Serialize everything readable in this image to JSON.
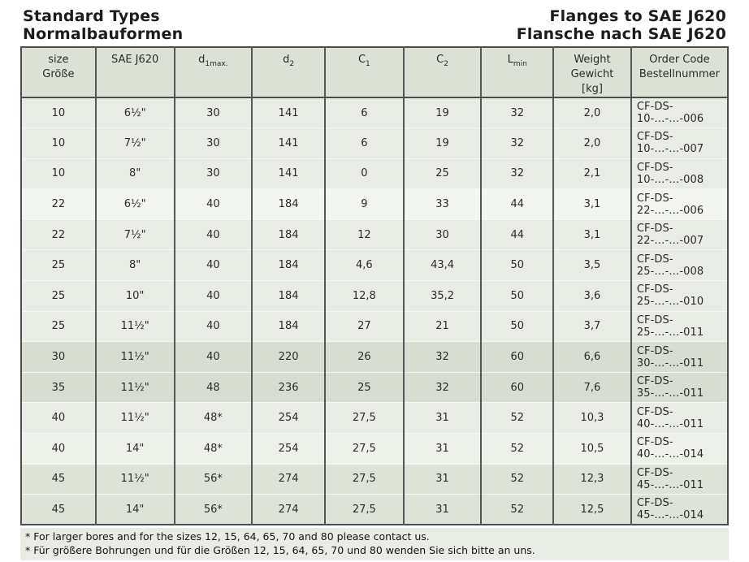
{
  "titles": {
    "left_line1": "Standard Types",
    "left_line2": "Normalbauformen",
    "right_line1": "Flanges to SAE J620",
    "right_line2": "Flansche nach SAE J620"
  },
  "table": {
    "columns": [
      {
        "id": "size",
        "label_lines": [
          "size",
          "Größe"
        ]
      },
      {
        "id": "sae",
        "label_lines": [
          "SAE J620"
        ]
      },
      {
        "id": "d1max",
        "base": "d",
        "sub": "1max."
      },
      {
        "id": "d2",
        "base": "d",
        "sub": "2"
      },
      {
        "id": "c1",
        "base": "C",
        "sub": "1"
      },
      {
        "id": "c2",
        "base": "C",
        "sub": "2"
      },
      {
        "id": "lmin",
        "base": "L",
        "sub": "min"
      },
      {
        "id": "weight",
        "label_lines": [
          "Weight",
          "Gewicht",
          "[kg]"
        ]
      },
      {
        "id": "order",
        "label_lines": [
          "Order Code",
          "Bestellnummer"
        ]
      }
    ],
    "col_widths_pct": [
      10.55,
      11.12,
      11.0,
      10.32,
      11.12,
      11.0,
      10.2,
      11.0,
      13.69
    ],
    "rows": [
      {
        "shade": "light",
        "cells": [
          "10",
          "6½\"",
          "30",
          "141",
          "6",
          "19",
          "32",
          "2,0",
          "CF-DS-10-…-…-006"
        ]
      },
      {
        "shade": "light",
        "cells": [
          "10",
          "7½\"",
          "30",
          "141",
          "6",
          "19",
          "32",
          "2,0",
          "CF-DS-10-…-…-007"
        ]
      },
      {
        "shade": "light",
        "cells": [
          "10",
          "8\"",
          "30",
          "141",
          "0",
          "25",
          "32",
          "2,1",
          "CF-DS-10-…-…-008"
        ]
      },
      {
        "shade": "white",
        "cells": [
          "22",
          "6½\"",
          "40",
          "184",
          "9",
          "33",
          "44",
          "3,1",
          "CF-DS-22-…-…-006"
        ]
      },
      {
        "shade": "light",
        "cells": [
          "22",
          "7½\"",
          "40",
          "184",
          "12",
          "30",
          "44",
          "3,1",
          "CF-DS-22-…-…-007"
        ]
      },
      {
        "shade": "light",
        "cells": [
          "25",
          "8\"",
          "40",
          "184",
          "4,6",
          "43,4",
          "50",
          "3,5",
          "CF-DS-25-…-…-008"
        ]
      },
      {
        "shade": "light",
        "cells": [
          "25",
          "10\"",
          "40",
          "184",
          "12,8",
          "35,2",
          "50",
          "3,6",
          "CF-DS-25-…-…-010"
        ]
      },
      {
        "shade": "light",
        "cells": [
          "25",
          "11½\"",
          "40",
          "184",
          "27",
          "21",
          "50",
          "3,7",
          "CF-DS-25-…-…-011"
        ]
      },
      {
        "shade": "dark",
        "cells": [
          "30",
          "11½\"",
          "40",
          "220",
          "26",
          "32",
          "60",
          "6,6",
          "CF-DS-30-…-…-011"
        ]
      },
      {
        "shade": "dark",
        "cells": [
          "35",
          "11½\"",
          "48",
          "236",
          "25",
          "32",
          "60",
          "7,6",
          "CF-DS-35-…-…-011"
        ]
      },
      {
        "shade": "light",
        "cells": [
          "40",
          "11½\"",
          "48*",
          "254",
          "27,5",
          "31",
          "52",
          "10,3",
          "CF-DS-40-…-…-011"
        ]
      },
      {
        "shade": "lighter",
        "cells": [
          "40",
          "14\"",
          "48*",
          "254",
          "27,5",
          "31",
          "52",
          "10,5",
          "CF-DS-40-…-…-014"
        ]
      },
      {
        "shade": "medium",
        "cells": [
          "45",
          "11½\"",
          "56*",
          "274",
          "27,5",
          "31",
          "52",
          "12,3",
          "CF-DS-45-…-…-011"
        ]
      },
      {
        "shade": "medium",
        "cells": [
          "45",
          "14\"",
          "56*",
          "274",
          "27,5",
          "31",
          "52",
          "12,5",
          "CF-DS-45-…-…-014"
        ]
      }
    ]
  },
  "footnotes": [
    "* For larger bores and for the sizes 12, 15, 64, 65, 70 and 80 please contact us.",
    "* Für größere Bohrungen und für die Größen 12, 15, 64, 65, 70 und 80 wenden Sie sich bitte an uns."
  ],
  "colors": {
    "header_bg": "#dce1d6",
    "row_light": "#e9ece5",
    "row_white": "#f3f5f1",
    "row_dark": "#d8ddd2",
    "row_medium": "#dee3d8",
    "border_dark": "#4b4d4f",
    "divider": "#55575b"
  }
}
